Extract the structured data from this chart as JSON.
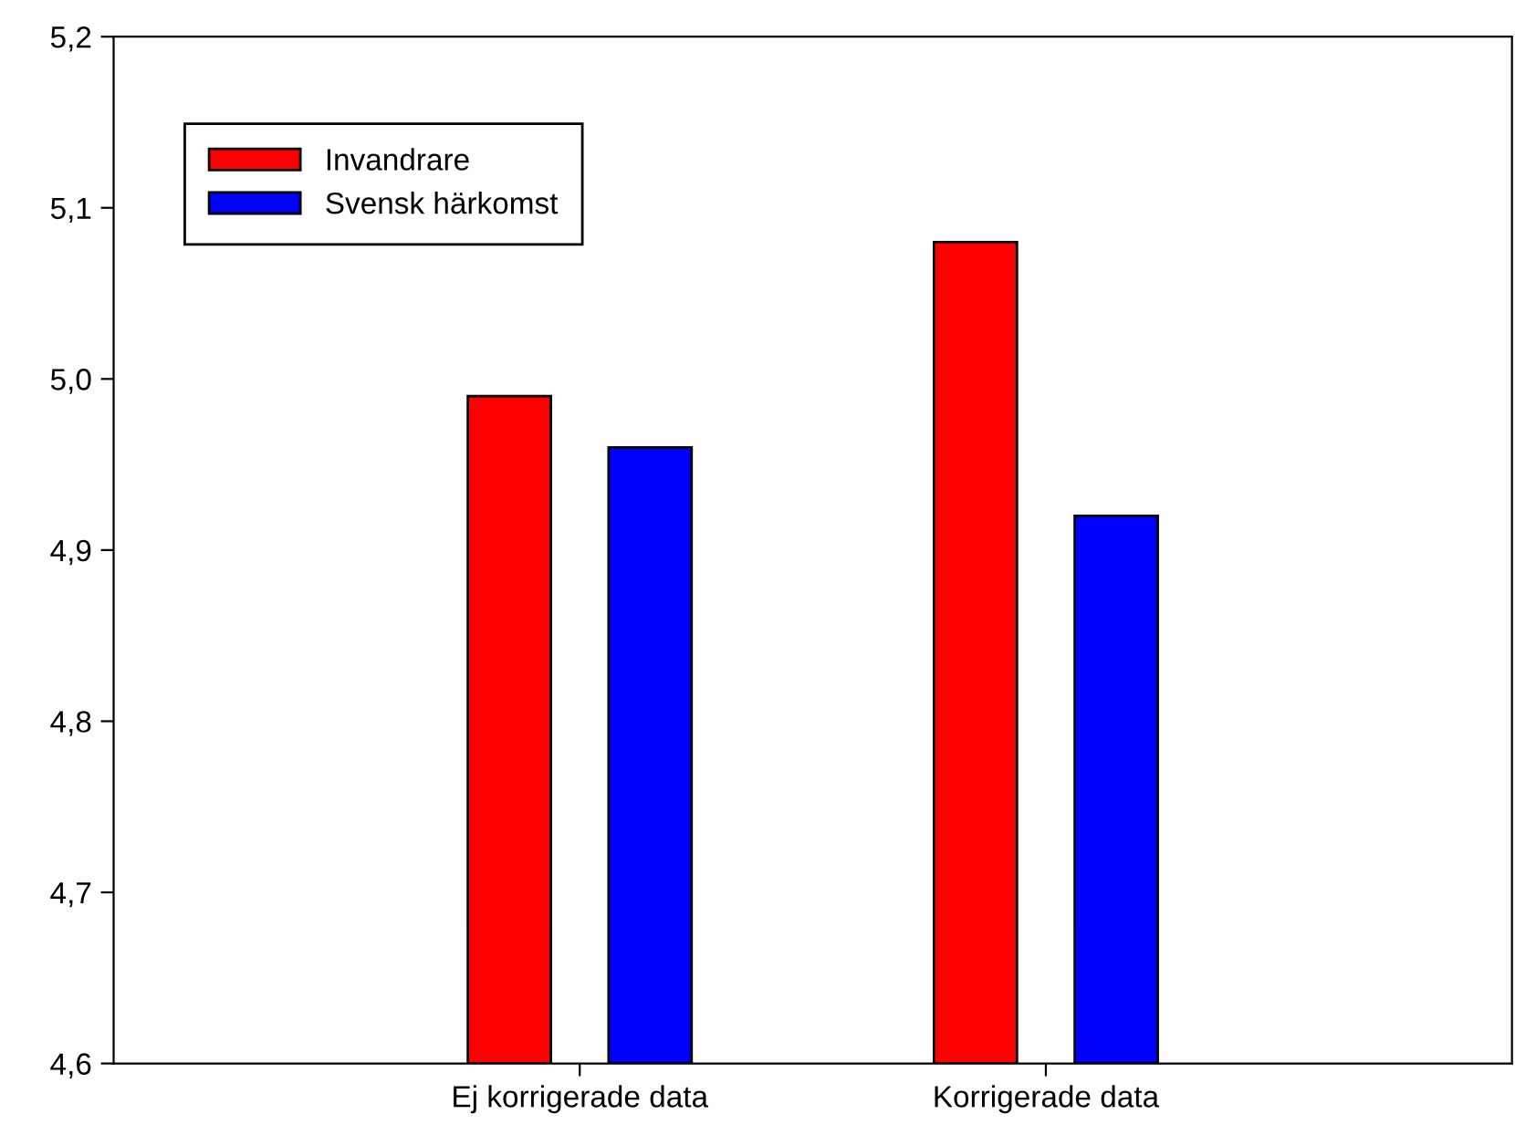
{
  "chart_data": {
    "type": "bar",
    "categories": [
      "Ej korrigerade data",
      "Korrigerade data"
    ],
    "series": [
      {
        "name": "Invandrare",
        "color": "#ff0000",
        "values": [
          4.99,
          5.08
        ]
      },
      {
        "name": "Svensk härkomst",
        "color": "#0000ff",
        "values": [
          4.96,
          4.92
        ]
      }
    ],
    "ylim": [
      4.6,
      5.2
    ],
    "yticks": [
      {
        "value": 4.6,
        "label": "4,6"
      },
      {
        "value": 4.7,
        "label": "4,7"
      },
      {
        "value": 4.8,
        "label": "4,8"
      },
      {
        "value": 4.9,
        "label": "4,9"
      },
      {
        "value": 5.0,
        "label": "5,0"
      },
      {
        "value": 5.1,
        "label": "5,1"
      },
      {
        "value": 5.2,
        "label": "5,2"
      }
    ],
    "grid": false,
    "legend": "top left"
  }
}
